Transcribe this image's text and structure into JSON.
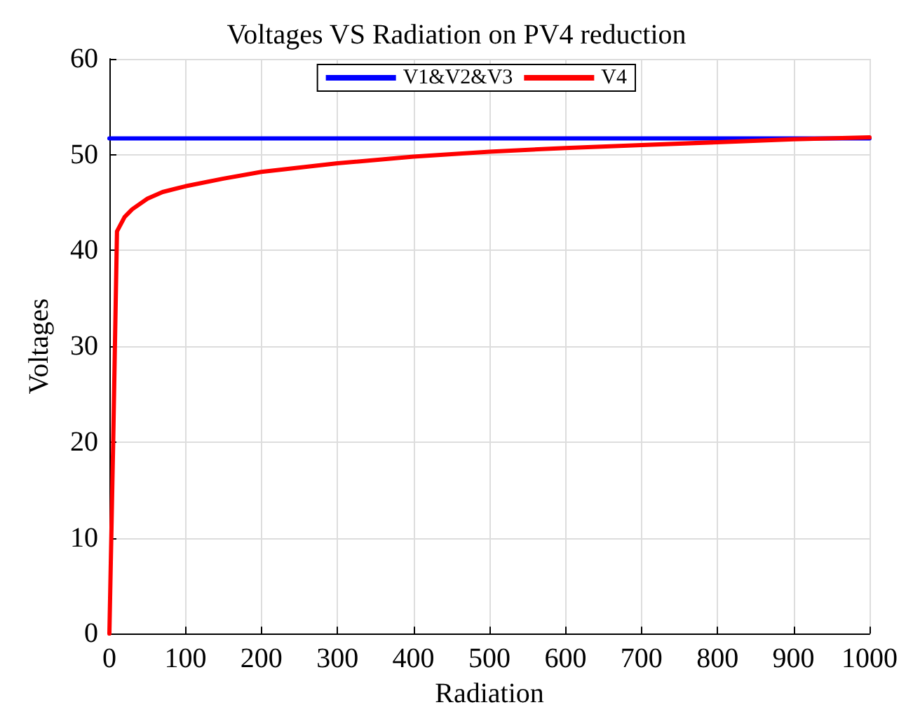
{
  "chart_data": {
    "type": "line",
    "title": "Voltages VS Radiation on PV4 reduction",
    "xlabel": "Radiation",
    "ylabel": "Voltages",
    "xlim": [
      0,
      1000
    ],
    "xticks": [
      0,
      100,
      200,
      300,
      400,
      500,
      600,
      700,
      800,
      900,
      1000
    ],
    "ylim": [
      0,
      60
    ],
    "yticks": [
      0,
      10,
      20,
      30,
      40,
      50,
      60
    ],
    "grid": true,
    "legend": "top right",
    "marker": "none",
    "line_style": "solid",
    "series": [
      {
        "name": "V1&V2&V3",
        "color": "#0000ff",
        "x": [
          0,
          1000
        ],
        "values": [
          51.7,
          51.7
        ]
      },
      {
        "name": "V4",
        "color": "#ff0000",
        "x": [
          0,
          5,
          10,
          20,
          30,
          50,
          70,
          100,
          150,
          200,
          300,
          400,
          500,
          600,
          700,
          800,
          900,
          1000
        ],
        "values": [
          0,
          20,
          42,
          43.5,
          44.3,
          45.4,
          46.1,
          46.7,
          47.5,
          48.2,
          49.1,
          49.8,
          50.3,
          50.7,
          51.0,
          51.3,
          51.6,
          51.8
        ]
      }
    ]
  }
}
